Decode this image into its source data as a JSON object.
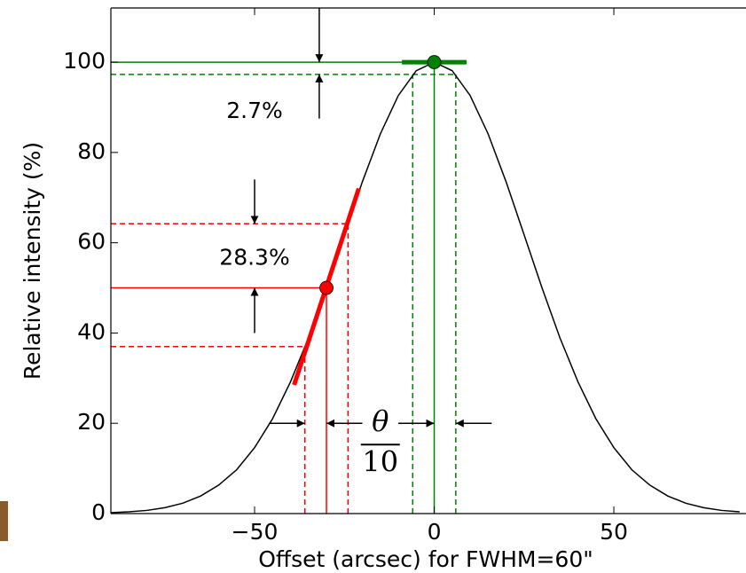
{
  "chart_data": {
    "type": "line",
    "xlabel": "Offset (arcsec) for FWHM=60\"",
    "ylabel": "Relative intensity (%)",
    "x": [
      -90,
      -85,
      -80,
      -75,
      -70,
      -65,
      -60,
      -55,
      -50,
      -45,
      -40,
      -35,
      -30,
      -25,
      -20,
      -15,
      -10,
      -5,
      0,
      5,
      10,
      15,
      20,
      25,
      30,
      35,
      40,
      45,
      50,
      55,
      60,
      65,
      70,
      75,
      80,
      85
    ],
    "series": [
      {
        "color": "#000000",
        "values": [
          0.2,
          0.4,
          0.7,
          1.3,
          2.3,
          3.9,
          6.3,
          9.7,
          14.6,
          21.0,
          29.2,
          38.9,
          50.0,
          61.8,
          73.5,
          84.1,
          92.6,
          98.1,
          100,
          98.1,
          92.6,
          84.1,
          73.5,
          61.8,
          50.0,
          38.9,
          29.2,
          21.0,
          14.6,
          9.7,
          6.3,
          3.9,
          2.3,
          1.3,
          0.7,
          0.4
        ]
      }
    ],
    "xlim": [
      -90,
      87
    ],
    "ylim": [
      0,
      112
    ],
    "xticks": [
      {
        "value": -50,
        "label": "−50"
      },
      0,
      50
    ],
    "yticks": [
      0,
      20,
      40,
      60,
      80,
      100
    ],
    "hlines": [
      {
        "y": 100,
        "x_end": 0,
        "color": "#008000",
        "dashed": false
      },
      {
        "y": 97.3,
        "x_end": 6,
        "color": "#008000",
        "dashed": true
      },
      {
        "y": 50,
        "x_end": -30,
        "color": "#ff0000",
        "dashed": false
      },
      {
        "y": 64.2,
        "x_end": -24,
        "color": "#ff0000",
        "dashed": true
      },
      {
        "y": 37,
        "x_end": -36,
        "color": "#ff0000",
        "dashed": true
      }
    ],
    "vlines": [
      {
        "x": 0,
        "y_end": 100,
        "color": "#008000",
        "dashed": false
      },
      {
        "x": -6,
        "y_end": 97.3,
        "color": "#008000",
        "dashed": true
      },
      {
        "x": 6,
        "y_end": 97.3,
        "color": "#008000",
        "dashed": true
      },
      {
        "x": -30,
        "y_end": 50,
        "color": "#ff0000",
        "dashed": false
      },
      {
        "x": -36,
        "y_end": 37,
        "color": "#ff0000",
        "dashed": true
      },
      {
        "x": -24,
        "y_end": 64.2,
        "color": "#ff0000",
        "dashed": true
      }
    ],
    "tangents": [
      {
        "x": [
          -9,
          9
        ],
        "y": [
          100,
          100
        ],
        "color": "#008000"
      },
      {
        "x": [
          -39,
          -21
        ],
        "y": [
          28.5,
          72
        ],
        "color": "#ff0000"
      }
    ],
    "points": [
      {
        "x": 0,
        "y": 100,
        "color": "#008000"
      },
      {
        "x": -30,
        "y": 50,
        "color": "#ff0000"
      }
    ],
    "arrows": [
      {
        "x": [
          -32,
          -32
        ],
        "y": [
          112,
          100
        ]
      },
      {
        "x": [
          -32,
          -32
        ],
        "y": [
          87.5,
          97.3
        ]
      },
      {
        "x": [
          -50,
          -50
        ],
        "y": [
          74,
          64.2
        ]
      },
      {
        "x": [
          -50,
          -50
        ],
        "y": [
          40,
          50
        ]
      },
      {
        "x": [
          -46,
          -36
        ],
        "y": [
          20,
          20
        ]
      },
      {
        "x": [
          -20,
          -30
        ],
        "y": [
          20,
          20
        ]
      },
      {
        "x": [
          -10,
          0
        ],
        "y": [
          20,
          20
        ]
      },
      {
        "x": [
          16,
          6
        ],
        "y": [
          20,
          20
        ]
      }
    ],
    "labels": [
      {
        "text": "2.7%",
        "x": -50,
        "y": 89
      },
      {
        "text": "28.3%",
        "x": -50,
        "y": 56.5
      }
    ],
    "fraction": {
      "numerator": "θ",
      "denominator": "10",
      "x": -15,
      "y": 20
    }
  }
}
